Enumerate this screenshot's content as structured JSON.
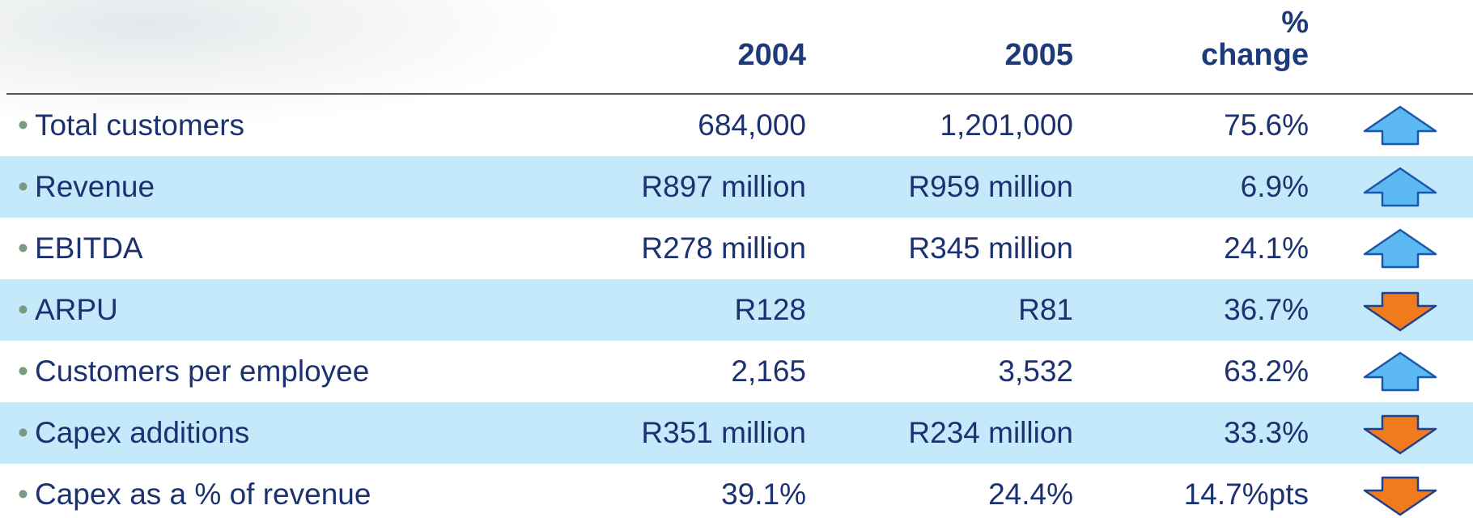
{
  "table": {
    "header": [
      "2004",
      "2005",
      "% change"
    ],
    "rows": [
      {
        "label": "Total customers",
        "values": [
          "684,000",
          "1,201,000",
          "75.6%"
        ],
        "trend": "up"
      },
      {
        "label": "Revenue",
        "values": [
          "R897 million",
          "R959 million",
          "6.9%"
        ],
        "trend": "up"
      },
      {
        "label": "EBITDA",
        "values": [
          "R278 million",
          "R345 million",
          "24.1%"
        ],
        "trend": "up"
      },
      {
        "label": "ARPU",
        "values": [
          "R128",
          "R81",
          "36.7%"
        ],
        "trend": "down"
      },
      {
        "label": "Customers per employee",
        "values": [
          "2,165",
          "3,532",
          "63.2%"
        ],
        "trend": "up"
      },
      {
        "label": "Capex additions",
        "values": [
          "R351 million",
          "R234 million",
          "33.3%"
        ],
        "trend": "down"
      },
      {
        "label": "Capex as a % of revenue",
        "values": [
          "39.1%",
          "24.4%",
          "14.7%pts"
        ],
        "trend": "down"
      }
    ]
  }
}
